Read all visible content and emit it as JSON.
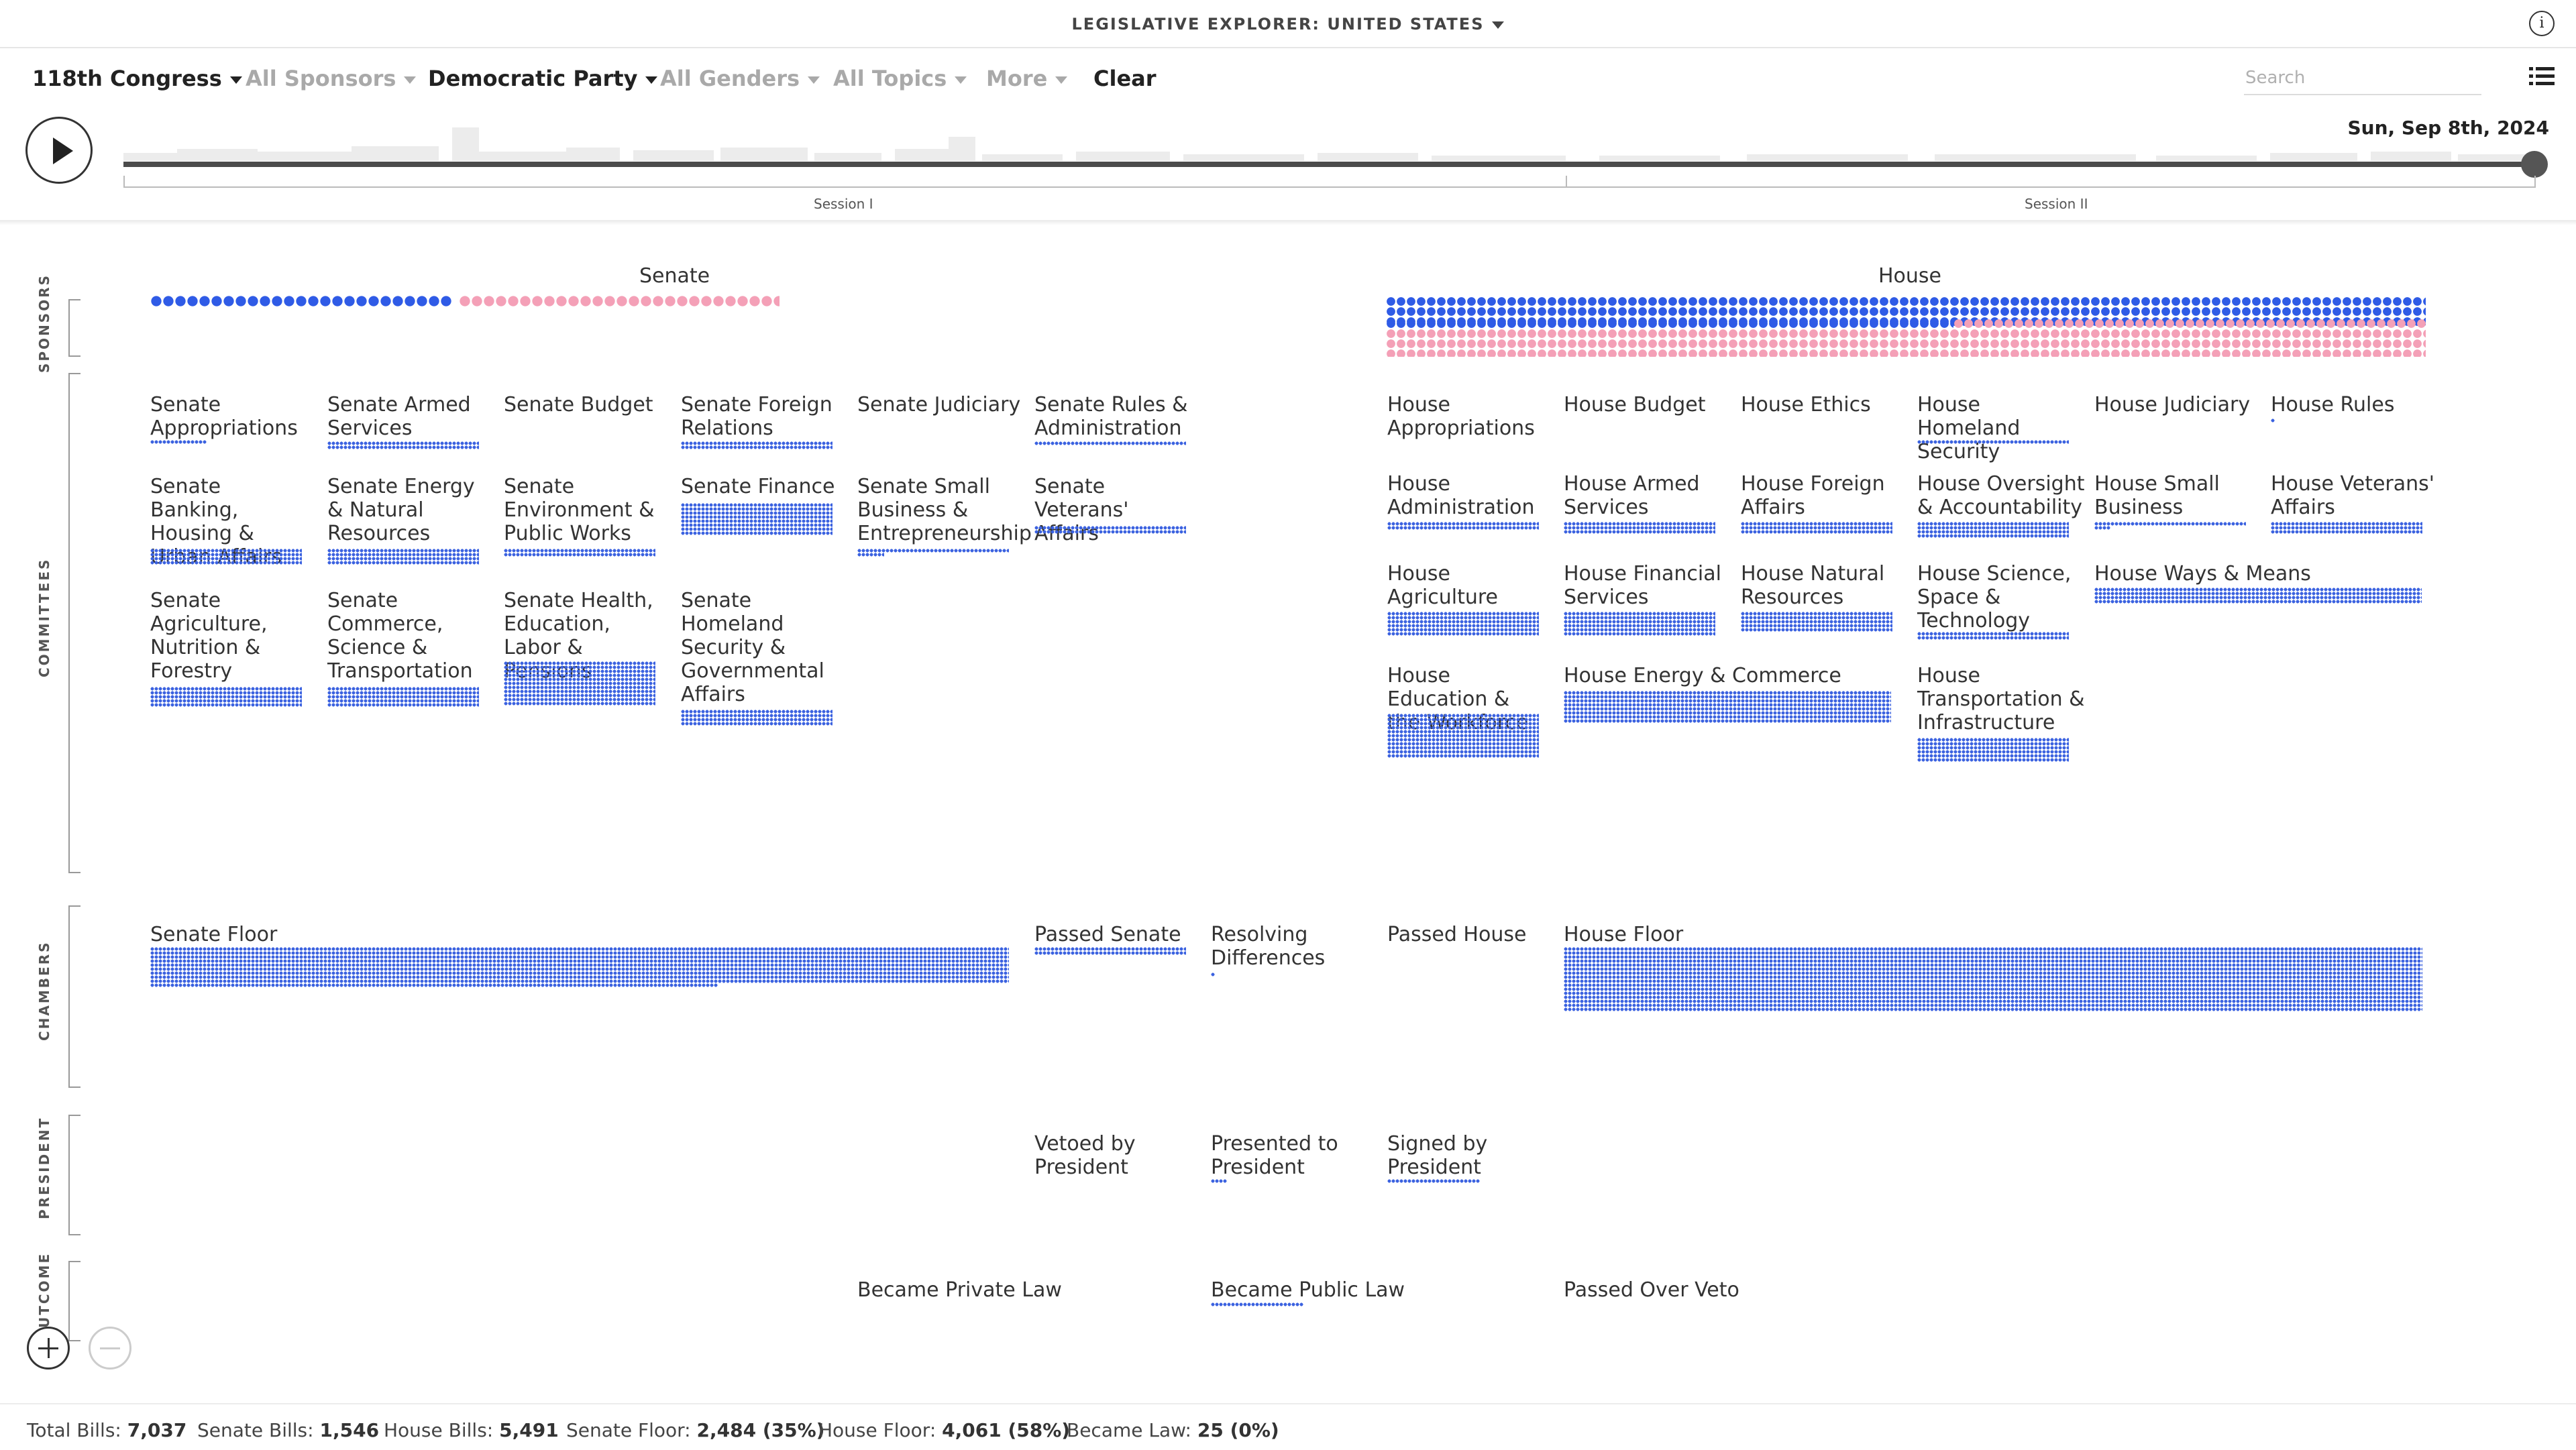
{
  "header": {
    "title": "LEGISLATIVE EXPLORER: UNITED STATES",
    "info_icon": "info-icon"
  },
  "filters": [
    {
      "label": "118th Congress",
      "active": true
    },
    {
      "label": "All Sponsors",
      "active": false
    },
    {
      "label": "Democratic Party",
      "active": true
    },
    {
      "label": "All Genders",
      "active": false
    },
    {
      "label": "All Topics",
      "active": false
    },
    {
      "label": "More",
      "active": false
    }
  ],
  "clear_label": "Clear",
  "search": {
    "placeholder": "Search"
  },
  "timeline": {
    "date": "Sun, Sep 8th, 2024",
    "progress": 1.0,
    "sessions": [
      "Session I",
      "Session II"
    ]
  },
  "sections": {
    "sponsors": "SPONSORS",
    "committees": "COMMITTEES",
    "chambers": "CHAMBERS",
    "president": "PRESIDENT",
    "outcome": "OUTCOME"
  },
  "chambers_titles": {
    "senate": "Senate",
    "house": "House"
  },
  "senate_committees": [
    "Senate Appropriations",
    "Senate Armed Services",
    "Senate Budget",
    "Senate Foreign Relations",
    "Senate Judiciary",
    "Senate Rules & Administration",
    "Senate Banking, Housing & Urban Affairs",
    "Senate Energy & Natural Resources",
    "Senate Environment & Public Works",
    "Senate Finance",
    "Senate Small Business & Entrepreneurship",
    "Senate Veterans' Affairs",
    "Senate Agriculture, Nutrition & Forestry",
    "Senate Commerce, Science & Transportation",
    "Senate Health, Education, Labor & Pensions",
    "Senate Homeland Security & Governmental Affairs"
  ],
  "house_committees": [
    "House Appropriations",
    "House Budget",
    "House Ethics",
    "House Homeland Security",
    "House Judiciary",
    "House Rules",
    "House Administration",
    "House Armed Services",
    "House Foreign Affairs",
    "House Oversight & Accountability",
    "House Small Business",
    "House Veterans' Affairs",
    "House Agriculture",
    "House Financial Services",
    "House Natural Resources",
    "House Science, Space & Technology",
    "House Ways & Means",
    "House Education & the Workforce",
    "House Energy & Commerce",
    "House Transportation & Infrastructure"
  ],
  "chamber_stages": {
    "senate_floor": "Senate Floor",
    "passed_senate": "Passed Senate",
    "resolving": "Resolving Differences",
    "passed_house": "Passed House",
    "house_floor": "House Floor"
  },
  "president_stages": {
    "vetoed": "Vetoed by President",
    "presented": "Presented to President",
    "signed": "Signed by President"
  },
  "outcome_stages": {
    "private_law": "Became Private Law",
    "public_law": "Became Public Law",
    "over_veto": "Passed Over Veto"
  },
  "footer": {
    "total_label": "Total Bills:",
    "total_value": "7,037",
    "senate_label": "Senate Bills:",
    "senate_value": "1,546",
    "house_label": "House Bills:",
    "house_value": "5,491",
    "sfloor_label": "Senate Floor:",
    "sfloor_value": "2,484 (35%)",
    "hfloor_label": "House Floor:",
    "hfloor_value": "4,061 (58%)",
    "law_label": "Became Law:",
    "law_value": "25 (0%)"
  },
  "colors": {
    "democrat": "#2f5be6",
    "republican": "#f4a0b7",
    "bill": "#3b62e0"
  }
}
